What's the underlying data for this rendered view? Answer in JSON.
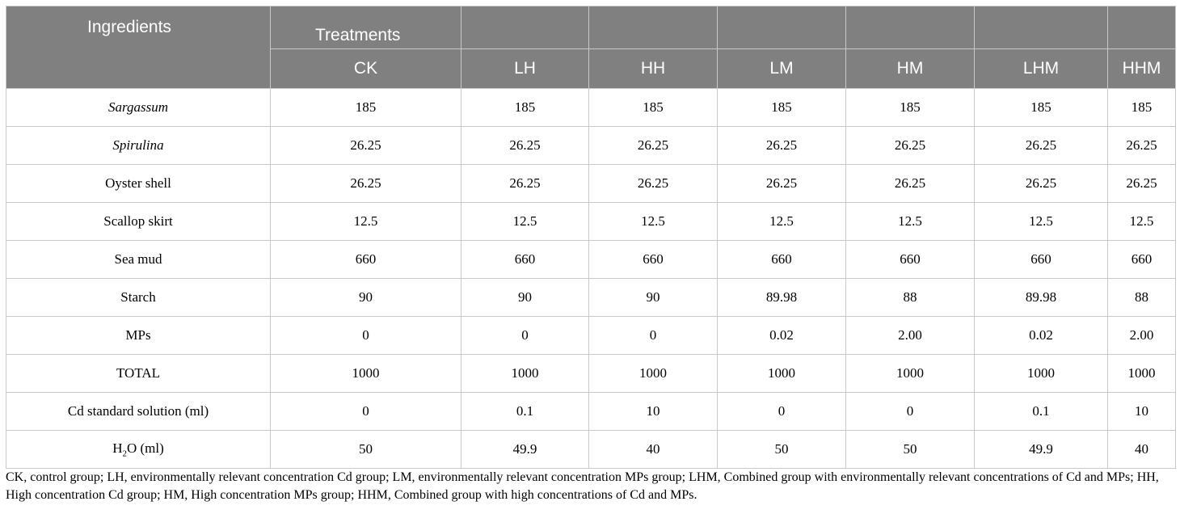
{
  "header": {
    "ingredients_label": "Ingredients",
    "treatments_label": "Treatments",
    "treatments": [
      "CK",
      "LH",
      "HH",
      "LM",
      "HM",
      "LHM",
      "HHM"
    ]
  },
  "rows": [
    {
      "label": "Sargassum",
      "italic": true,
      "values": [
        "185",
        "185",
        "185",
        "185",
        "185",
        "185",
        "185"
      ]
    },
    {
      "label": "Spirulina",
      "italic": true,
      "values": [
        "26.25",
        "26.25",
        "26.25",
        "26.25",
        "26.25",
        "26.25",
        "26.25"
      ]
    },
    {
      "label": "Oyster shell",
      "italic": false,
      "values": [
        "26.25",
        "26.25",
        "26.25",
        "26.25",
        "26.25",
        "26.25",
        "26.25"
      ]
    },
    {
      "label": "Scallop skirt",
      "italic": false,
      "values": [
        "12.5",
        "12.5",
        "12.5",
        "12.5",
        "12.5",
        "12.5",
        "12.5"
      ]
    },
    {
      "label": "Sea mud",
      "italic": false,
      "values": [
        "660",
        "660",
        "660",
        "660",
        "660",
        "660",
        "660"
      ]
    },
    {
      "label": "Starch",
      "italic": false,
      "values": [
        "90",
        "90",
        "90",
        "89.98",
        "88",
        "89.98",
        "88"
      ]
    },
    {
      "label": "MPs",
      "italic": false,
      "values": [
        "0",
        "0",
        "0",
        "0.02",
        "2.00",
        "0.02",
        "2.00"
      ]
    },
    {
      "label": "TOTAL",
      "italic": false,
      "values": [
        "1000",
        "1000",
        "1000",
        "1000",
        "1000",
        "1000",
        "1000"
      ]
    },
    {
      "label": "Cd standard solution (ml)",
      "italic": false,
      "values": [
        "0",
        "0.1",
        "10",
        "0",
        "0",
        "0.1",
        "10"
      ]
    },
    {
      "label_h": "H",
      "label_sub": "2",
      "label_rest": "O (ml)",
      "italic": false,
      "values": [
        "50",
        "49.9",
        "40",
        "50",
        "50",
        "49.9",
        "40"
      ]
    }
  ],
  "footnote": "CK, control group; LH, environmentally relevant concentration Cd group; LM, environmentally relevant concentration MPs group; LHM, Combined group with environmentally relevant concentrations of Cd and MPs; HH, High concentration Cd group; HM, High concentration MPs group; HHM, Combined group with high concentrations of Cd and MPs."
}
